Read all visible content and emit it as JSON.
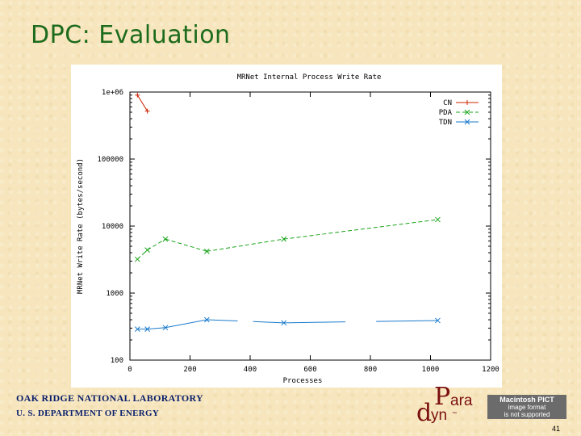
{
  "slide": {
    "title": "DPC: Evaluation",
    "org_line1": "OAK RIDGE NATIONAL LABORATORY",
    "org_line2": "U. S. DEPARTMENT OF ENERGY",
    "page_number": "41",
    "logo_text": [
      "P",
      "ara",
      "d",
      "yn",
      "™"
    ],
    "pict_placeholder": [
      "Macintosh PICT",
      "image format",
      "is not supported"
    ]
  },
  "chart_data": {
    "type": "line",
    "title": "MRNet Internal Process Write Rate",
    "xlabel": "Processes",
    "ylabel": "MRNet Write Rate (bytes/second)",
    "xlim": [
      0,
      1200
    ],
    "ylim": [
      100,
      1000000
    ],
    "yscale": "log",
    "xticks": [
      0,
      200,
      400,
      600,
      800,
      1000,
      1200
    ],
    "xtick_labels": [
      "0",
      "200",
      "400",
      "600",
      "800",
      "1000",
      "1200"
    ],
    "yticks": [
      100,
      1000,
      10000,
      100000,
      1000000
    ],
    "ytick_labels": [
      "100",
      "1000",
      "10000",
      "100000",
      "1e+06"
    ],
    "legend_position": "top-right",
    "series": [
      {
        "name": "CN",
        "color": "#cc2200",
        "marker": "plus",
        "dash": "solid",
        "x": [
          25,
          58
        ],
        "y": [
          900000,
          520000
        ]
      },
      {
        "name": "PDA",
        "color": "#1aa31a",
        "marker": "x",
        "dash": "dashed",
        "x": [
          25,
          58,
          118,
          256,
          512,
          1024
        ],
        "y": [
          3200,
          4400,
          6400,
          4200,
          6400,
          12500
        ]
      },
      {
        "name": "TDN",
        "color": "#1a7acc",
        "marker": "x",
        "dash": "solid",
        "x": [
          25,
          58,
          118,
          256,
          512,
          1024
        ],
        "y": [
          290,
          290,
          305,
          400,
          360,
          390
        ],
        "gaps_after": [
          3,
          4
        ]
      }
    ]
  }
}
